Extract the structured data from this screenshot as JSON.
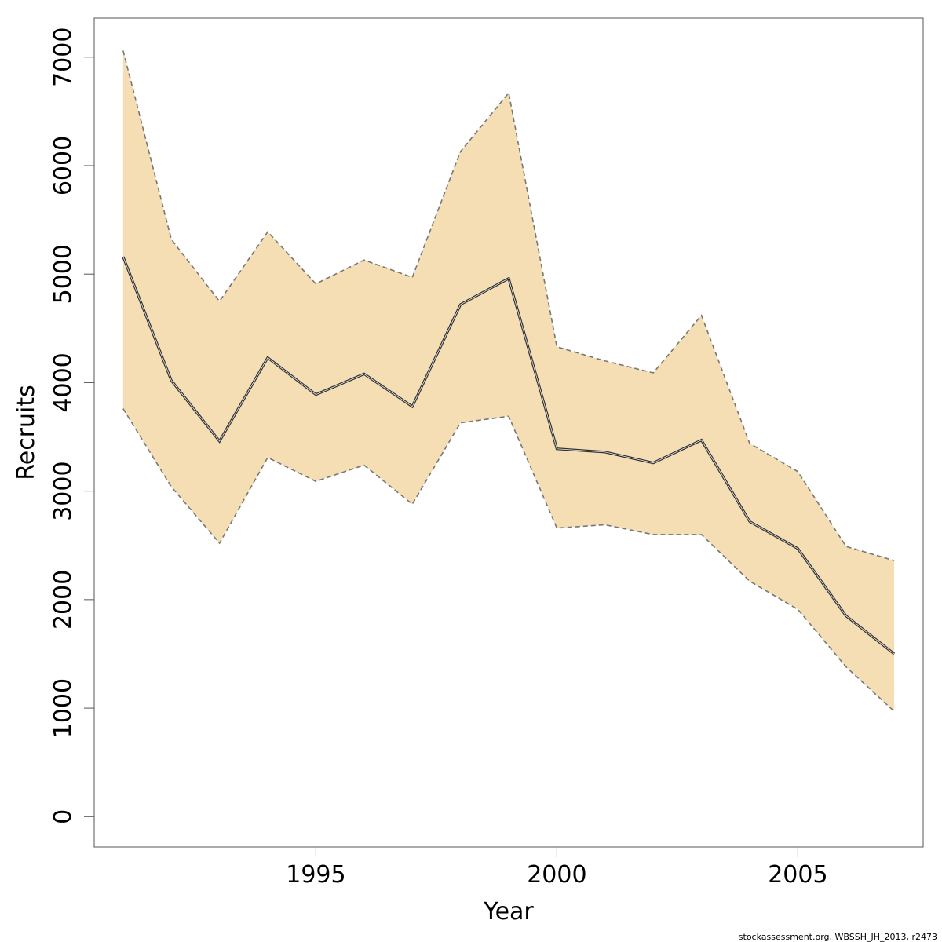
{
  "chart_data": {
    "type": "area",
    "xlabel": "Year",
    "ylabel": "Recruits",
    "xlim": [
      1990.4,
      2007.6
    ],
    "ylim": [
      -280,
      7360
    ],
    "x_ticks": [
      1995,
      2000,
      2005
    ],
    "y_ticks": [
      0,
      1000,
      2000,
      3000,
      4000,
      5000,
      6000,
      7000
    ],
    "x": [
      1991,
      1992,
      1993,
      1994,
      1995,
      1996,
      1997,
      1998,
      1999,
      2000,
      2001,
      2002,
      2003,
      2004,
      2005,
      2006,
      2007
    ],
    "series": [
      {
        "role": "estimate",
        "values": [
          5160,
          4020,
          3460,
          4230,
          3890,
          4080,
          3780,
          4720,
          4960,
          3390,
          3360,
          3260,
          3470,
          2720,
          2470,
          1850,
          1500
        ]
      },
      {
        "role": "upper bound",
        "values": [
          7060,
          5320,
          4750,
          5390,
          4910,
          5130,
          4970,
          6130,
          6670,
          4330,
          4200,
          4090,
          4620,
          3440,
          3180,
          2490,
          2360
        ]
      },
      {
        "role": "lower bound",
        "values": [
          3760,
          3040,
          2520,
          3310,
          3090,
          3240,
          2880,
          3630,
          3690,
          2660,
          2690,
          2600,
          2600,
          2170,
          1910,
          1380,
          970
        ]
      }
    ],
    "grid": false,
    "legend": "none",
    "colors": {
      "band_fill": "#f5deb3",
      "band_edge": "#777777",
      "line": "#333333"
    }
  },
  "credit": "stockassessment.org, WBSSH_JH_2013, r2473"
}
